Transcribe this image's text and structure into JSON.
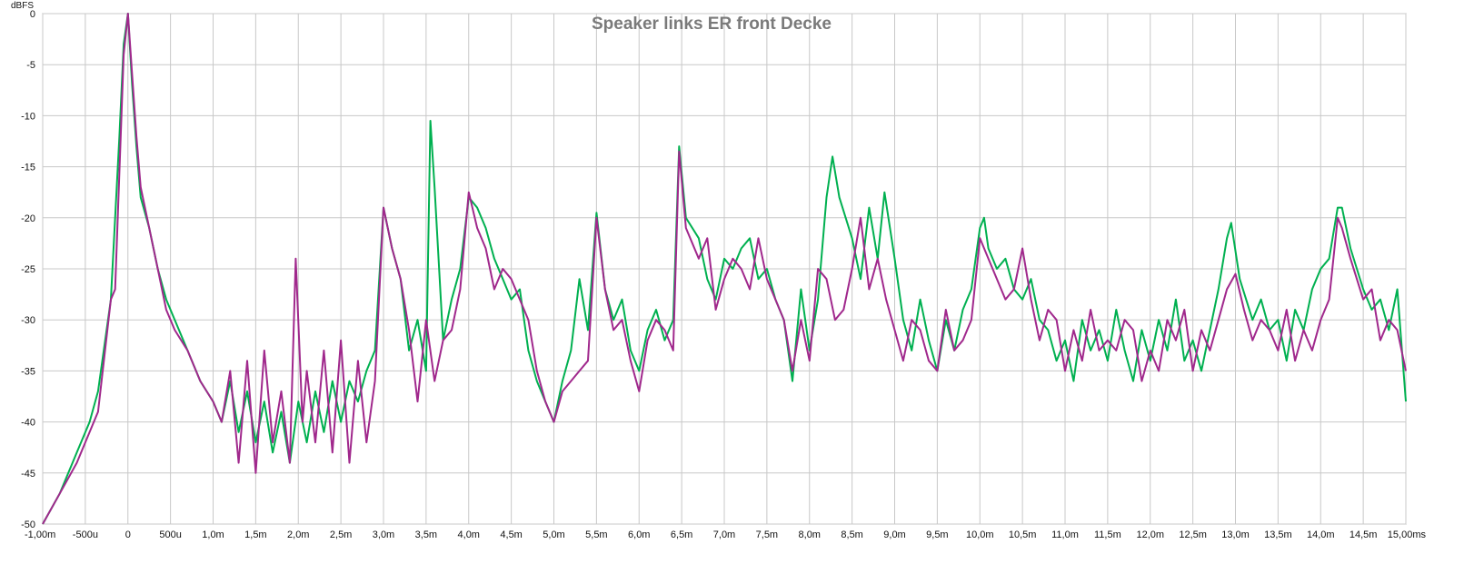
{
  "chart_data": {
    "type": "line",
    "title": "Speaker links ER front Decke",
    "ylabel": "dBFS",
    "xlabel": "",
    "xlim": [
      -1.0,
      15.0
    ],
    "ylim": [
      -50,
      0
    ],
    "grid": true,
    "x_ticks": [
      -1.0,
      -0.5,
      0,
      0.5,
      1.0,
      1.5,
      2.0,
      2.5,
      3.0,
      3.5,
      4.0,
      4.5,
      5.0,
      5.5,
      6.0,
      6.5,
      7.0,
      7.5,
      8.0,
      8.5,
      9.0,
      9.5,
      10.0,
      10.5,
      11.0,
      11.5,
      12.0,
      12.5,
      13.0,
      13.5,
      14.0,
      14.5,
      15.0
    ],
    "x_tick_labels": [
      "-1,00m",
      "-500u",
      "0",
      "500u",
      "1,0m",
      "1,5m",
      "2,0m",
      "2,5m",
      "3,0m",
      "3,5m",
      "4,0m",
      "4,5m",
      "5,0m",
      "5,5m",
      "6,0m",
      "6,5m",
      "7,0m",
      "7,5m",
      "8,0m",
      "8,5m",
      "9,0m",
      "9,5m",
      "10,0m",
      "10,5m",
      "11,0m",
      "11,5m",
      "12,0m",
      "12,5m",
      "13,0m",
      "13,5m",
      "14,0m",
      "14,5m",
      "15,00ms"
    ],
    "y_ticks": [
      0,
      -5,
      -10,
      -15,
      -20,
      -25,
      -30,
      -35,
      -40,
      -45,
      -50
    ],
    "y_tick_labels": [
      "0",
      "-5",
      "-10",
      "-15",
      "-20",
      "-25",
      "-30",
      "-35",
      "-40",
      "-45",
      "-50"
    ],
    "series": [
      {
        "color": "#00b050",
        "x": [
          -1.0,
          -0.8,
          -0.6,
          -0.45,
          -0.35,
          -0.2,
          -0.1,
          -0.05,
          0.0,
          0.05,
          0.1,
          0.15,
          0.25,
          0.35,
          0.45,
          0.55,
          0.7,
          0.85,
          1.0,
          1.1,
          1.2,
          1.3,
          1.4,
          1.5,
          1.6,
          1.7,
          1.8,
          1.9,
          2.0,
          2.1,
          2.2,
          2.3,
          2.4,
          2.5,
          2.6,
          2.7,
          2.8,
          2.9,
          3.0,
          3.1,
          3.2,
          3.3,
          3.4,
          3.5,
          3.55,
          3.6,
          3.7,
          3.8,
          3.9,
          4.0,
          4.1,
          4.2,
          4.3,
          4.4,
          4.5,
          4.6,
          4.7,
          4.8,
          4.9,
          5.0,
          5.1,
          5.2,
          5.3,
          5.4,
          5.5,
          5.6,
          5.7,
          5.8,
          5.9,
          6.0,
          6.1,
          6.2,
          6.3,
          6.4,
          6.47,
          6.55,
          6.7,
          6.8,
          6.9,
          7.0,
          7.1,
          7.2,
          7.3,
          7.4,
          7.5,
          7.6,
          7.7,
          7.8,
          7.9,
          8.0,
          8.1,
          8.2,
          8.27,
          8.35,
          8.5,
          8.6,
          8.7,
          8.8,
          8.88,
          9.0,
          9.1,
          9.2,
          9.3,
          9.4,
          9.5,
          9.6,
          9.7,
          9.8,
          9.9,
          10.0,
          10.05,
          10.1,
          10.2,
          10.3,
          10.4,
          10.5,
          10.6,
          10.7,
          10.8,
          10.9,
          11.0,
          11.1,
          11.2,
          11.3,
          11.4,
          11.5,
          11.6,
          11.7,
          11.8,
          11.9,
          12.0,
          12.1,
          12.2,
          12.3,
          12.4,
          12.5,
          12.6,
          12.7,
          12.8,
          12.9,
          12.95,
          13.05,
          13.2,
          13.3,
          13.4,
          13.5,
          13.6,
          13.7,
          13.8,
          13.9,
          14.0,
          14.1,
          14.2,
          14.25,
          14.35,
          14.5,
          14.6,
          14.7,
          14.8,
          14.9,
          15.0
        ],
        "y": [
          -50,
          -47,
          -43,
          -40,
          -37,
          -28,
          -12,
          -3,
          0,
          -7,
          -13,
          -18,
          -21,
          -25,
          -28,
          -30,
          -33,
          -36,
          -38,
          -40,
          -36,
          -41,
          -37,
          -42,
          -38,
          -43,
          -39,
          -44,
          -38,
          -42,
          -37,
          -41,
          -36,
          -40,
          -36,
          -38,
          -35,
          -33,
          -19,
          -23,
          -26,
          -33,
          -30,
          -35,
          -10.5,
          -17,
          -32,
          -28,
          -25,
          -18,
          -19,
          -21,
          -24,
          -26,
          -28,
          -27,
          -33,
          -36,
          -38,
          -40,
          -36,
          -33,
          -26,
          -31,
          -19.5,
          -27,
          -30,
          -28,
          -33,
          -35,
          -31,
          -29,
          -32,
          -30,
          -13,
          -20,
          -22,
          -26,
          -28,
          -24,
          -25,
          -23,
          -22,
          -26,
          -25,
          -28,
          -30,
          -36,
          -27,
          -33,
          -28,
          -18,
          -14,
          -18,
          -22,
          -26,
          -19,
          -24,
          -17.5,
          -24,
          -30,
          -33,
          -28,
          -32,
          -35,
          -30,
          -33,
          -29,
          -27,
          -21,
          -20,
          -23,
          -25,
          -24,
          -27,
          -28,
          -26,
          -30,
          -31,
          -34,
          -32,
          -36,
          -30,
          -33,
          -31,
          -34,
          -29,
          -33,
          -36,
          -31,
          -34,
          -30,
          -33,
          -28,
          -34,
          -32,
          -35,
          -31,
          -27,
          -22,
          -20.5,
          -26,
          -30,
          -28,
          -31,
          -30,
          -34,
          -29,
          -31,
          -27,
          -25,
          -24,
          -19,
          -19,
          -23,
          -27,
          -29,
          -28,
          -31,
          -27,
          -38
        ]
      },
      {
        "color": "#a0288c",
        "x": [
          -1.0,
          -0.8,
          -0.6,
          -0.45,
          -0.35,
          -0.2,
          -0.15,
          -0.05,
          0.0,
          0.05,
          0.1,
          0.15,
          0.25,
          0.35,
          0.45,
          0.55,
          0.7,
          0.85,
          1.0,
          1.1,
          1.2,
          1.3,
          1.4,
          1.5,
          1.6,
          1.7,
          1.8,
          1.9,
          1.97,
          2.05,
          2.1,
          2.2,
          2.3,
          2.4,
          2.5,
          2.6,
          2.7,
          2.8,
          2.9,
          3.0,
          3.1,
          3.2,
          3.3,
          3.4,
          3.5,
          3.6,
          3.7,
          3.8,
          3.9,
          4.0,
          4.1,
          4.2,
          4.3,
          4.4,
          4.5,
          4.6,
          4.7,
          4.8,
          4.9,
          5.0,
          5.1,
          5.2,
          5.3,
          5.4,
          5.5,
          5.6,
          5.7,
          5.8,
          5.9,
          6.0,
          6.1,
          6.2,
          6.3,
          6.4,
          6.47,
          6.55,
          6.7,
          6.8,
          6.9,
          7.0,
          7.1,
          7.2,
          7.3,
          7.4,
          7.5,
          7.6,
          7.7,
          7.8,
          7.9,
          8.0,
          8.1,
          8.2,
          8.3,
          8.4,
          8.5,
          8.6,
          8.7,
          8.8,
          8.9,
          9.0,
          9.1,
          9.2,
          9.3,
          9.4,
          9.5,
          9.6,
          9.7,
          9.8,
          9.9,
          10.0,
          10.1,
          10.2,
          10.3,
          10.4,
          10.5,
          10.6,
          10.7,
          10.8,
          10.9,
          11.0,
          11.1,
          11.2,
          11.3,
          11.4,
          11.5,
          11.6,
          11.7,
          11.8,
          11.9,
          12.0,
          12.1,
          12.2,
          12.3,
          12.4,
          12.5,
          12.6,
          12.7,
          12.8,
          12.9,
          13.0,
          13.1,
          13.2,
          13.3,
          13.4,
          13.5,
          13.6,
          13.7,
          13.8,
          13.9,
          14.0,
          14.1,
          14.2,
          14.25,
          14.35,
          14.5,
          14.6,
          14.7,
          14.8,
          14.9,
          15.0
        ],
        "y": [
          -50,
          -47,
          -44,
          -41,
          -39,
          -28,
          -27,
          -4,
          0,
          -6,
          -12,
          -17,
          -21,
          -25,
          -29,
          -31,
          -33,
          -36,
          -38,
          -40,
          -35,
          -44,
          -34,
          -45,
          -33,
          -42,
          -37,
          -44,
          -24,
          -40,
          -35,
          -42,
          -33,
          -43,
          -32,
          -44,
          -34,
          -42,
          -36,
          -19,
          -23,
          -26,
          -31,
          -38,
          -30,
          -36,
          -32,
          -31,
          -27,
          -17.5,
          -21,
          -23,
          -27,
          -25,
          -26,
          -28,
          -30,
          -35,
          -38,
          -40,
          -37,
          -36,
          -35,
          -34,
          -20,
          -27,
          -31,
          -30,
          -34,
          -37,
          -32,
          -30,
          -31,
          -33,
          -13.5,
          -21,
          -24,
          -22,
          -29,
          -26,
          -24,
          -25,
          -27,
          -22,
          -26,
          -28,
          -30,
          -35,
          -30,
          -34,
          -25,
          -26,
          -30,
          -29,
          -25,
          -20,
          -27,
          -24,
          -28,
          -31,
          -34,
          -30,
          -31,
          -34,
          -35,
          -29,
          -33,
          -32,
          -30,
          -22,
          -24,
          -26,
          -28,
          -27,
          -23,
          -28,
          -32,
          -29,
          -30,
          -35,
          -31,
          -34,
          -29,
          -33,
          -32,
          -33,
          -30,
          -31,
          -36,
          -33,
          -35,
          -30,
          -32,
          -29,
          -35,
          -31,
          -33,
          -30,
          -27,
          -25.5,
          -29,
          -32,
          -30,
          -31,
          -33,
          -29,
          -34,
          -31,
          -33,
          -30,
          -28,
          -20,
          -21,
          -24,
          -28,
          -27,
          -32,
          -30,
          -31,
          -35
        ]
      }
    ]
  }
}
